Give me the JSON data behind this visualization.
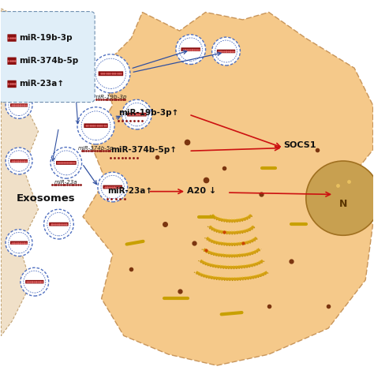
{
  "bg_color": "#ffffff",
  "cell_color": "#f5c98a",
  "cell_border_color": "#c8955a",
  "cell_light": "#fde8c0",
  "nucleus_color": "#c8a050",
  "nucleus_border": "#a07020",
  "golgi_color": "#d4a010",
  "golgi_dot_color": "#f0c840",
  "legend_box_color": "#e0eef8",
  "legend_border_color": "#7090b0",
  "exosome_fill": "#ffffff",
  "exosome_border": "#5070c0",
  "mir_stripe_color": "#8b1010",
  "mir_stripe_light": "#cc4444",
  "arrow_blue": "#3050a0",
  "arrow_red": "#cc1111",
  "text_black": "#111111",
  "source_cell_color": "#f0e0c8",
  "source_cell_border": "#c0a070",
  "exosomes_label": "Exosomes",
  "legend_items": [
    {
      "text": "miR-19b-3p",
      "color": "#8b1010"
    },
    {
      "text": "miR-374b-5p",
      "color": "#8b1010"
    },
    {
      "text": "miR-23a↑",
      "color": "#8b1010"
    }
  ]
}
